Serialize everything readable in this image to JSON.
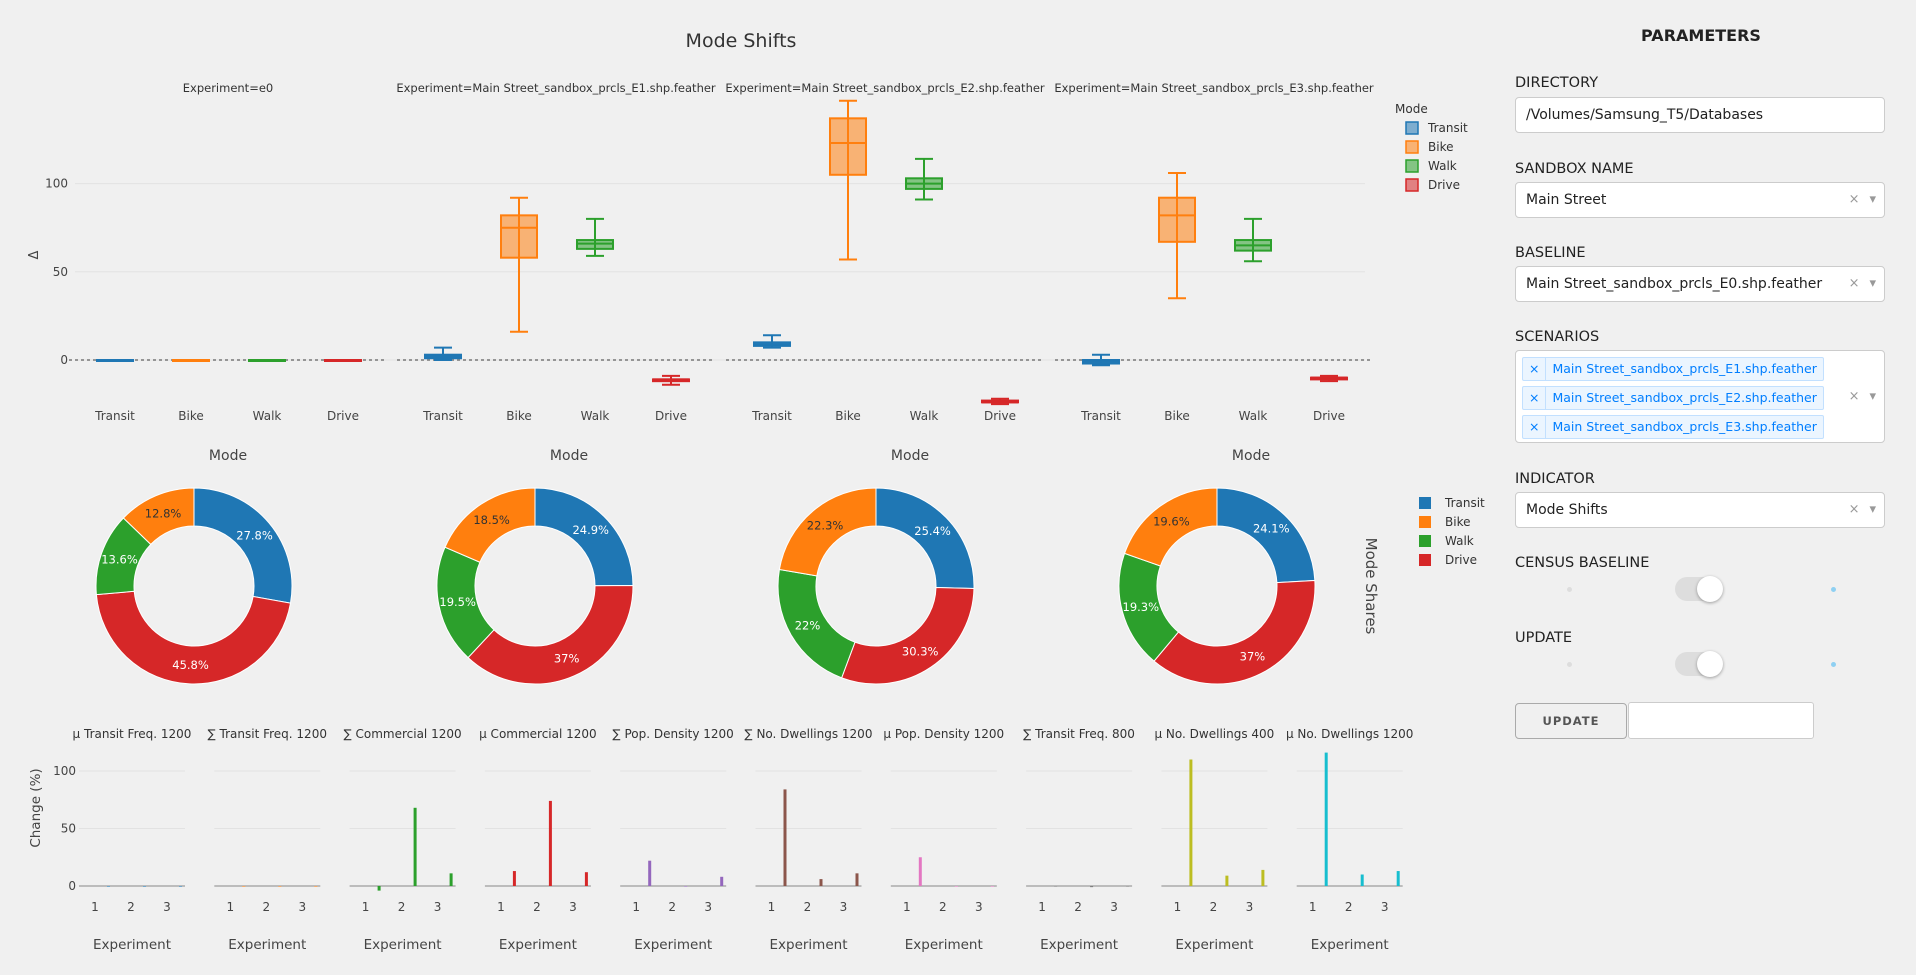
{
  "title": "Mode Shifts",
  "box_panels": [
    {
      "title": "Experiment=e0"
    },
    {
      "title": "Experiment=Main Street_sandbox_prcls_E1.shp.feather"
    },
    {
      "title": "Experiment=Main Street_sandbox_prcls_E2.shp.feather"
    },
    {
      "title": "Experiment=Main Street_sandbox_prcls_E3.shp.feather"
    }
  ],
  "modes": [
    "Transit",
    "Bike",
    "Walk",
    "Drive"
  ],
  "mode_colors": {
    "Transit": "#1f77b4",
    "Bike": "#ff7f0e",
    "Walk": "#2ca02c",
    "Drive": "#d62728"
  },
  "box_legend": {
    "title": "Mode",
    "items": [
      "Transit",
      "Bike",
      "Walk",
      "Drive"
    ]
  },
  "pie_legend": {
    "items": [
      "Transit",
      "Bike",
      "Walk",
      "Drive"
    ]
  },
  "pie_side_title": "Mode Shares",
  "bar_ylabel": "Change (%)",
  "bar_xlabel": "Experiment",
  "chart_data": [
    {
      "type": "box",
      "title": "Mode Shifts",
      "ylabel": "Δ",
      "ylim": [
        -25,
        150
      ],
      "yticks": [
        0,
        50,
        100
      ],
      "legend": "right",
      "panels": [
        {
          "experiment": "e0",
          "boxes": [
            {
              "mode": "Transit",
              "min": 0,
              "q1": 0,
              "median": 0,
              "q3": 0,
              "max": 0
            },
            {
              "mode": "Bike",
              "min": 0,
              "q1": 0,
              "median": 0,
              "q3": 0,
              "max": 0
            },
            {
              "mode": "Walk",
              "min": 0,
              "q1": 0,
              "median": 0,
              "q3": 0,
              "max": 0
            },
            {
              "mode": "Drive",
              "min": 0,
              "q1": 0,
              "median": 0,
              "q3": 0,
              "max": 0
            }
          ]
        },
        {
          "experiment": "Main Street_sandbox_prcls_E1.shp.feather",
          "boxes": [
            {
              "mode": "Transit",
              "min": 0,
              "q1": 1,
              "median": 2,
              "q3": 3,
              "max": 7
            },
            {
              "mode": "Bike",
              "min": 16,
              "q1": 58,
              "median": 75,
              "q3": 82,
              "max": 92
            },
            {
              "mode": "Walk",
              "min": 59,
              "q1": 63,
              "median": 66,
              "q3": 68,
              "max": 80
            },
            {
              "mode": "Drive",
              "min": -14,
              "q1": -12,
              "median": -11,
              "q3": -11,
              "max": -9
            }
          ]
        },
        {
          "experiment": "Main Street_sandbox_prcls_E2.shp.feather",
          "boxes": [
            {
              "mode": "Transit",
              "min": 7,
              "q1": 8,
              "median": 9,
              "q3": 10,
              "max": 14
            },
            {
              "mode": "Bike",
              "min": 57,
              "q1": 105,
              "median": 123,
              "q3": 137,
              "max": 147
            },
            {
              "mode": "Walk",
              "min": 91,
              "q1": 97,
              "median": 100,
              "q3": 103,
              "max": 114
            },
            {
              "mode": "Drive",
              "min": -25,
              "q1": -24,
              "median": -24,
              "q3": -23,
              "max": -22
            }
          ]
        },
        {
          "experiment": "Main Street_sandbox_prcls_E3.shp.feather",
          "boxes": [
            {
              "mode": "Transit",
              "min": -3,
              "q1": -2,
              "median": -1,
              "q3": 0,
              "max": 3
            },
            {
              "mode": "Bike",
              "min": 35,
              "q1": 67,
              "median": 82,
              "q3": 92,
              "max": 106
            },
            {
              "mode": "Walk",
              "min": 56,
              "q1": 62,
              "median": 65,
              "q3": 68,
              "max": 80
            },
            {
              "mode": "Drive",
              "min": -12,
              "q1": -11,
              "median": -10,
              "q3": -10,
              "max": -9
            }
          ]
        }
      ]
    },
    {
      "type": "pie",
      "legend": "right",
      "pies": [
        {
          "title": "Mode",
          "slices": [
            {
              "label": "Transit",
              "value": 27.8,
              "text": "27.8%"
            },
            {
              "label": "Drive",
              "value": 45.8,
              "text": "45.8%"
            },
            {
              "label": "Walk",
              "value": 13.6,
              "text": "13.6%"
            },
            {
              "label": "Bike",
              "value": 12.8,
              "text": "12.8%"
            }
          ]
        },
        {
          "title": "Mode",
          "slices": [
            {
              "label": "Transit",
              "value": 24.9,
              "text": "24.9%"
            },
            {
              "label": "Drive",
              "value": 37,
              "text": "37%"
            },
            {
              "label": "Walk",
              "value": 19.5,
              "text": "19.5%"
            },
            {
              "label": "Bike",
              "value": 18.5,
              "text": "18.5%"
            }
          ]
        },
        {
          "title": "Mode",
          "slices": [
            {
              "label": "Transit",
              "value": 25.4,
              "text": "25.4%"
            },
            {
              "label": "Drive",
              "value": 30.3,
              "text": "30.3%"
            },
            {
              "label": "Walk",
              "value": 22,
              "text": "22%"
            },
            {
              "label": "Bike",
              "value": 22.3,
              "text": "22.3%"
            }
          ]
        },
        {
          "title": "Mode",
          "slices": [
            {
              "label": "Transit",
              "value": 24.1,
              "text": "24.1%"
            },
            {
              "label": "Drive",
              "value": 37,
              "text": "37%"
            },
            {
              "label": "Walk",
              "value": 19.3,
              "text": "19.3%"
            },
            {
              "label": "Bike",
              "value": 19.6,
              "text": "19.6%"
            }
          ]
        }
      ]
    },
    {
      "type": "bar",
      "ylabel": "Change (%)",
      "xlabel": "Experiment",
      "ylim": [
        -10,
        120
      ],
      "yticks": [
        0,
        50,
        100
      ],
      "categories": [
        1,
        2,
        3
      ],
      "panels": [
        {
          "title": "μ Transit Freq. 1200",
          "values": [
            0,
            0,
            0
          ],
          "color": "#1f77b4"
        },
        {
          "title": "∑ Transit Freq. 1200",
          "values": [
            0,
            0,
            0
          ],
          "color": "#ff7f0e"
        },
        {
          "title": "∑ Commercial 1200",
          "values": [
            -4,
            68,
            11
          ],
          "color": "#2ca02c"
        },
        {
          "title": "μ Commercial 1200",
          "values": [
            13,
            74,
            12
          ],
          "color": "#d62728"
        },
        {
          "title": "∑ Pop. Density 1200",
          "values": [
            22,
            0,
            8
          ],
          "color": "#9467bd"
        },
        {
          "title": "∑ No. Dwellings 1200",
          "values": [
            84,
            6,
            11
          ],
          "color": "#8c564b"
        },
        {
          "title": "μ Pop. Density 1200",
          "values": [
            25,
            0,
            0
          ],
          "color": "#e377c2"
        },
        {
          "title": "∑ Transit Freq. 800",
          "values": [
            0,
            -1,
            0
          ],
          "color": "#7f7f7f"
        },
        {
          "title": "μ No. Dwellings 400",
          "values": [
            110,
            9,
            14
          ],
          "color": "#bcbd22"
        },
        {
          "title": "μ No. Dwellings 1200",
          "values": [
            116,
            10,
            13
          ],
          "color": "#17becf"
        }
      ]
    }
  ],
  "panel": {
    "title": "PARAMETERS",
    "directory_label": "DIRECTORY",
    "directory_value": "/Volumes/Samsung_T5/Databases",
    "sandbox_label": "SANDBOX NAME",
    "sandbox_value": "Main Street",
    "baseline_label": "BASELINE",
    "baseline_value": "Main Street_sandbox_prcls_E0.shp.feather",
    "scenarios_label": "SCENARIOS",
    "scenarios": [
      "Main Street_sandbox_prcls_E1.shp.feather",
      "Main Street_sandbox_prcls_E2.shp.feather",
      "Main Street_sandbox_prcls_E3.shp.feather"
    ],
    "indicator_label": "INDICATOR",
    "indicator_value": "Mode Shifts",
    "census_label": "CENSUS BASELINE",
    "update_label": "UPDATE",
    "update_button": "UPDATE",
    "clear_glyph": "×",
    "caret_glyph": "▾",
    "toggle_dot_color": "#8fd0f2"
  }
}
